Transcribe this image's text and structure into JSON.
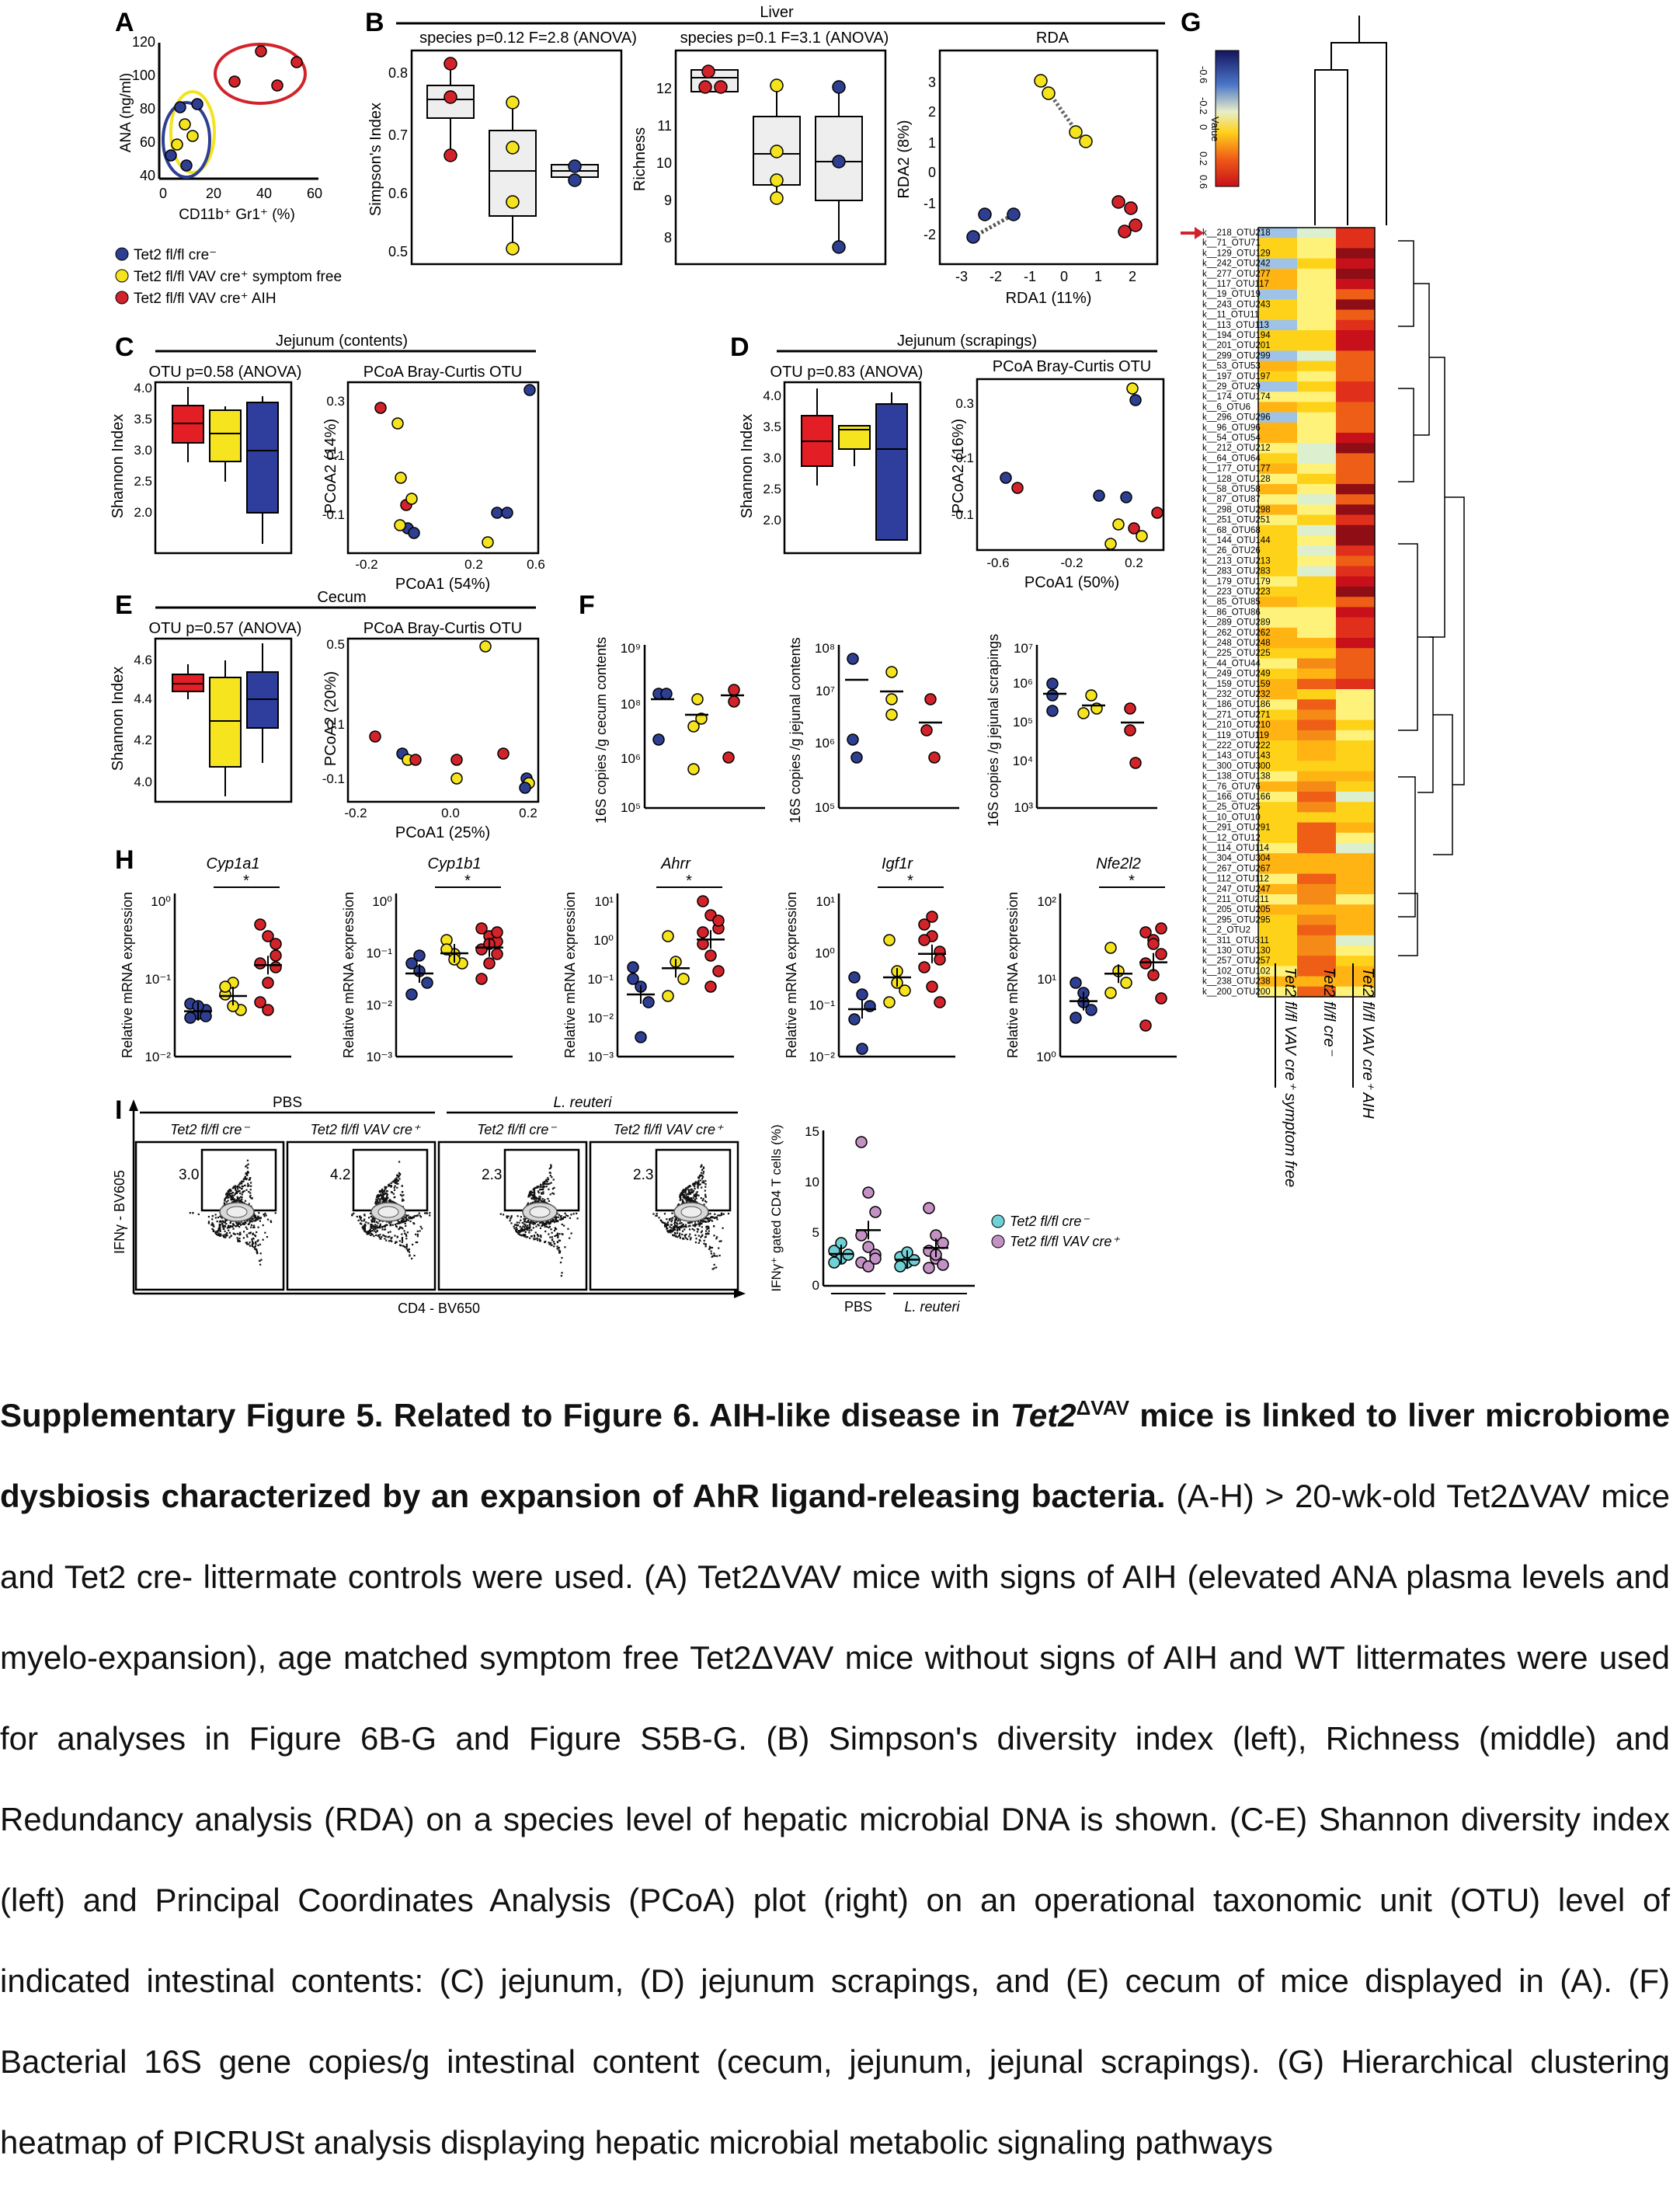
{
  "panels": {
    "A": {
      "letter": "A",
      "ylabel": "ANA (ng/ml)",
      "xlabel": "CD11b⁺ Gr1⁺ (%)",
      "yticks": [
        "120",
        "100",
        "80",
        "60",
        "40"
      ],
      "xticks": [
        "0",
        "20",
        "40",
        "60"
      ]
    },
    "legend": [
      {
        "name": "Tet2 fl/fl cre⁻",
        "color": "#2e3f91"
      },
      {
        "name": "Tet2 fl/fl VAV cre⁺ symptom free",
        "color": "#f4e31d"
      },
      {
        "name": "Tet2 fl/fl VAV cre⁺ AIH",
        "color": "#d2232a"
      }
    ],
    "B": {
      "letter": "B",
      "header": "Liver",
      "simpson_title": "species p=0.12 F=2.8 (ANOVA)",
      "simpson_ylabel": "Simpson's Index",
      "richness_title": "species p=0.1 F=3.1 (ANOVA)",
      "richness_ylabel": "Richness",
      "rda_title": "RDA",
      "rda_xlabel": "RDA1 (11%)",
      "rda_ylabel": "RDA2 (8%)"
    },
    "C": {
      "letter": "C",
      "header": "Jejunum (contents)",
      "shannon_title": "OTU p=0.58 (ANOVA)",
      "shannon_ylabel": "Shannon Index",
      "pcoa_title": "PCoA Bray-Curtis OTU",
      "pcoa_xlabel": "PCoA1 (54%)",
      "pcoa_ylabel": "PCoA2 (14%)"
    },
    "D": {
      "letter": "D",
      "header": "Jejunum (scrapings)",
      "shannon_title": "OTU p=0.83 (ANOVA)",
      "shannon_ylabel": "Shannon Index",
      "pcoa_title": "PCoA Bray-Curtis OTU",
      "pcoa_xlabel": "PCoA1 (50%)",
      "pcoa_ylabel": "PCoA2 (16%)"
    },
    "E": {
      "letter": "E",
      "header": "Cecum",
      "shannon_title": "OTU p=0.57 (ANOVA)",
      "shannon_ylabel": "Shannon Index",
      "pcoa_title": "PCoA Bray-Curtis OTU",
      "pcoa_xlabel": "PCoA1 (25%)",
      "pcoa_ylabel": "PCoA2 (20%)"
    },
    "F": {
      "letter": "F",
      "ylabels": [
        "16S copies /g cecum contents",
        "16S copies /g jejunal contents",
        "16S copies /g jejunal scrapings"
      ]
    },
    "G": {
      "letter": "G",
      "value_label": "Value",
      "scale": [
        "-0.6",
        "-0.2",
        "0",
        "0.2",
        "0.6"
      ],
      "columns": [
        "Tet2 fl/fl VAV cre⁺ symptom free",
        "Tet2 fl/fl cre⁻",
        "Tet2 fl/fl VAV cre⁺ AIH"
      ]
    },
    "H": {
      "letter": "H",
      "ylabel": "Relative mRNA expression",
      "genes": [
        "Cyp1a1",
        "Cyp1b1",
        "Ahrr",
        "Igf1r",
        "Nfe2l2"
      ]
    },
    "I": {
      "letter": "I",
      "pbs": "PBS",
      "lreuteri": "L. reuteri",
      "cols": [
        "Tet2 fl/fl cre⁻",
        "Tet2 fl/fl VAV cre⁺",
        "Tet2 fl/fl cre⁻",
        "Tet2 fl/fl VAV cre⁺"
      ],
      "gates": [
        "3.0",
        "4.2",
        "2.3",
        "2.3"
      ],
      "ylabel": "IFNγ - BV605",
      "xlabel": "CD4 - BV650",
      "bar_ylabel": "IFNγ⁺ gated CD4 T cells (%)",
      "bar_yticks": [
        "15",
        "10",
        "5",
        "0"
      ],
      "bar_groups": [
        "PBS",
        "L. reuteri"
      ],
      "legend": [
        "Tet2 fl/fl cre⁻",
        "Tet2 fl/fl VAV cre⁺"
      ]
    }
  },
  "caption": {
    "title_bold_1": "Supplementary Figure 5. Related to Figure 6. AIH-like disease in ",
    "title_italic": "Tet2",
    "title_sup": "ΔVAV",
    "title_bold_2": " mice is linked to liver microbiome dysbiosis characterized by an expansion of AhR ligand-releasing bacteria.",
    "body": " (A-H) > 20-wk-old Tet2ΔVAV mice and Tet2 cre- littermate controls were used. (A) Tet2ΔVAV mice with signs of AIH (elevated ANA plasma levels and myelo-expansion), age matched symptom free Tet2ΔVAV mice without signs of AIH and WT littermates were used for analyses in Figure 6B-G and Figure S5B-G. (B) Simpson's diversity index (left), Richness (middle) and Redundancy analysis (RDA) on a species level of hepatic microbial DNA is shown. (C-E) Shannon diversity index (left) and Principal Coordinates Analysis (PCoA) plot (right) on an operational taxonomic unit (OTU) level of indicated intestinal contents: (C) jejunum, (D) jejunum scrapings, and (E) cecum of mice displayed in (A). (F) Bacterial 16S gene copies/g intestinal content (cecum, jejunum, jejunal scrapings). (G) Hierarchical clustering heatmap of PICRUSt analysis displaying hepatic microbial metabolic signaling pathways"
  }
}
